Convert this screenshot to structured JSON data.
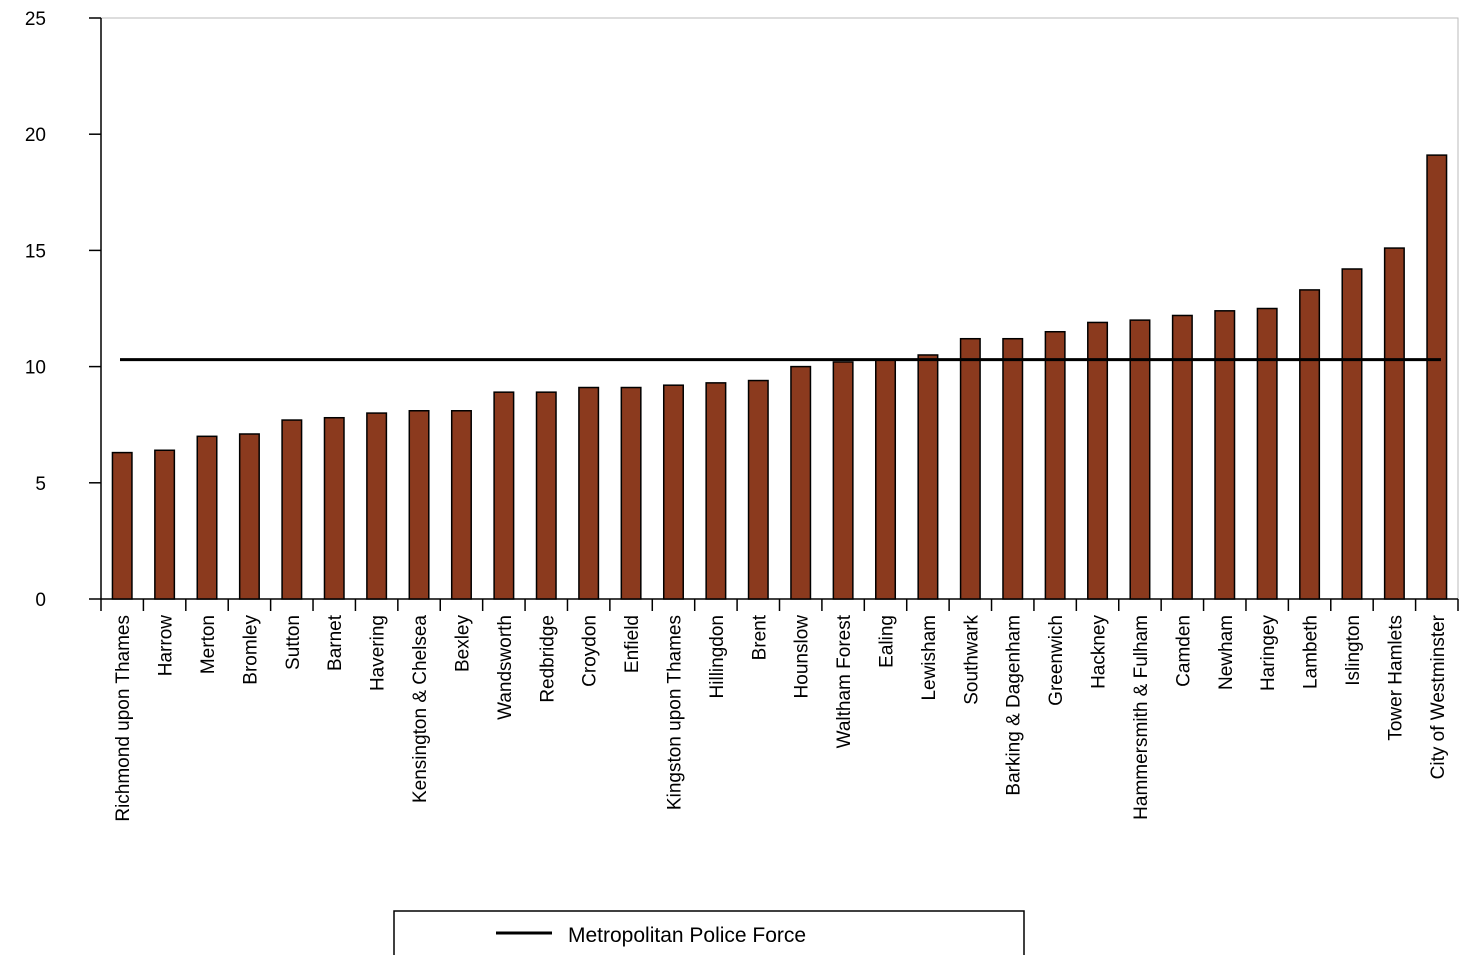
{
  "chart_data": {
    "type": "bar",
    "categories": [
      "Richmond upon Thames",
      "Harrow",
      "Merton",
      "Bromley",
      "Sutton",
      "Barnet",
      "Havering",
      "Kensington & Chelsea",
      "Bexley",
      "Wandsworth",
      "Redbridge",
      "Croydon",
      "Enfield",
      "Kingston upon Thames",
      "Hillingdon",
      "Brent",
      "Hounslow",
      "Waltham Forest",
      "Ealing",
      "Lewisham",
      "Southwark",
      "Barking & Dagenham",
      "Greenwich",
      "Hackney",
      "Hammersmith & Fulham",
      "Camden",
      "Newham",
      "Haringey",
      "Lambeth",
      "Islington",
      "Tower Hamlets",
      "City of Westminster"
    ],
    "values": [
      6.3,
      6.4,
      7.0,
      7.1,
      7.7,
      7.8,
      8.0,
      8.1,
      8.1,
      8.9,
      8.9,
      9.1,
      9.1,
      9.2,
      9.3,
      9.4,
      10.0,
      10.2,
      10.3,
      10.5,
      11.2,
      11.2,
      11.5,
      11.9,
      12.0,
      12.2,
      12.4,
      12.5,
      13.3,
      14.2,
      15.1,
      19.1
    ],
    "ylim": [
      0,
      25
    ],
    "yticks": [
      0,
      5,
      10,
      15,
      20,
      25
    ],
    "reference_line": {
      "name": "Metropolitan Police Force",
      "value": 10.3,
      "color": "#000000"
    },
    "bar_color": "#8B3A1E",
    "grid": false,
    "legend_position": "bottom-center"
  }
}
